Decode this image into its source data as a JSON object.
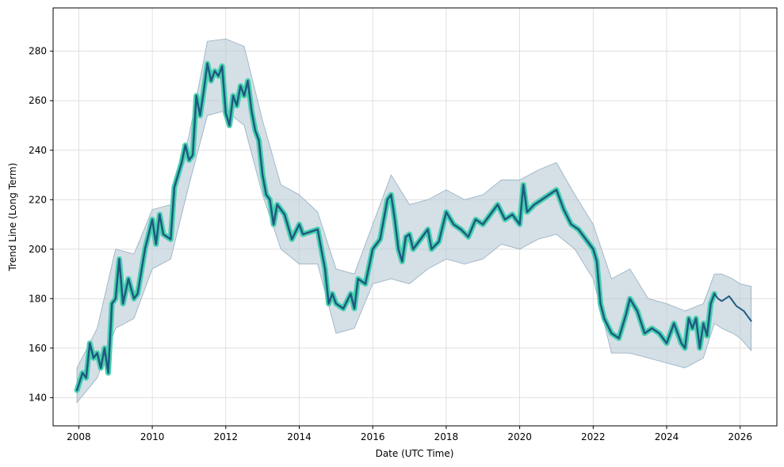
{
  "chart_data": {
    "type": "line",
    "title": "",
    "xlabel": "Date (UTC Time)",
    "ylabel": "Trend Line (Long Term)",
    "xlim": [
      2007.3,
      2027.0
    ],
    "ylim": [
      128.6,
      297.5
    ],
    "grid": true,
    "legend": "none",
    "x_ticks": [
      2008,
      2010,
      2012,
      2014,
      2016,
      2018,
      2020,
      2022,
      2024,
      2026
    ],
    "x_tick_labels": [
      "2008",
      "2010",
      "2012",
      "2014",
      "2016",
      "2018",
      "2020",
      "2022",
      "2024",
      "2026"
    ],
    "y_ticks": [
      140,
      160,
      180,
      200,
      220,
      240,
      260,
      280
    ],
    "y_tick_labels": [
      "140",
      "160",
      "180",
      "200",
      "220",
      "240",
      "260",
      "280"
    ],
    "colors": {
      "trend": "#1f5a80",
      "trend_glow": "#48d1b0",
      "band_fill": "#b7c9d6",
      "band_edge": "#94aec1",
      "grid": "#d9d9d9"
    },
    "series": [
      {
        "role": "historical",
        "x": [
          2007.95,
          2008.1,
          2008.2,
          2008.3,
          2008.4,
          2008.5,
          2008.6,
          2008.7,
          2008.8,
          2008.9,
          2009.0,
          2009.1,
          2009.2,
          2009.35,
          2009.5,
          2009.6,
          2009.8,
          2010.0,
          2010.1,
          2010.2,
          2010.3,
          2010.5,
          2010.6,
          2010.8,
          2010.9,
          2011.0,
          2011.1,
          2011.2,
          2011.3,
          2011.4,
          2011.5,
          2011.6,
          2011.7,
          2011.8,
          2011.9,
          2012.0,
          2012.1,
          2012.2,
          2012.3,
          2012.4,
          2012.5,
          2012.6,
          2012.7,
          2012.8,
          2012.9,
          2013.0,
          2013.1,
          2013.2,
          2013.3,
          2013.4,
          2013.6,
          2013.8,
          2014.0,
          2014.1,
          2014.3,
          2014.5,
          2014.6,
          2014.7,
          2014.8,
          2014.9,
          2015.0,
          2015.2,
          2015.4,
          2015.5,
          2015.6,
          2015.8,
          2016.0,
          2016.2,
          2016.4,
          2016.5,
          2016.6,
          2016.7,
          2016.8,
          2016.9,
          2017.0,
          2017.1,
          2017.3,
          2017.5,
          2017.6,
          2017.8,
          2018.0,
          2018.2,
          2018.4,
          2018.6,
          2018.8,
          2019.0,
          2019.2,
          2019.4,
          2019.6,
          2019.8,
          2020.0,
          2020.1,
          2020.2,
          2020.4,
          2020.6,
          2020.8,
          2021.0,
          2021.2,
          2021.4,
          2021.6,
          2021.8,
          2022.0,
          2022.1,
          2022.2,
          2022.3,
          2022.5,
          2022.7,
          2022.9,
          2023.0,
          2023.2,
          2023.4,
          2023.6,
          2023.8,
          2024.0,
          2024.2,
          2024.4,
          2024.5,
          2024.6,
          2024.7,
          2024.8,
          2024.9,
          2025.0,
          2025.1,
          2025.2,
          2025.3
        ],
        "y": [
          143,
          150,
          148,
          162,
          156,
          158,
          152,
          160,
          150,
          178,
          180,
          196,
          178,
          188,
          180,
          182,
          200,
          212,
          202,
          214,
          206,
          204,
          225,
          235,
          242,
          236,
          238,
          262,
          254,
          264,
          275,
          268,
          272,
          270,
          274,
          255,
          250,
          262,
          258,
          266,
          262,
          268,
          256,
          248,
          244,
          230,
          222,
          220,
          210,
          218,
          214,
          204,
          210,
          206,
          207,
          208,
          200,
          192,
          178,
          182,
          178,
          176,
          182,
          176,
          188,
          186,
          200,
          204,
          220,
          222,
          212,
          200,
          195,
          205,
          206,
          200,
          204,
          208,
          200,
          203,
          215,
          210,
          208,
          205,
          212,
          210,
          214,
          218,
          212,
          214,
          210,
          226,
          215,
          218,
          220,
          222,
          224,
          216,
          210,
          208,
          204,
          200,
          195,
          178,
          172,
          166,
          164,
          174,
          180,
          175,
          166,
          168,
          166,
          162,
          170,
          162,
          160,
          172,
          168,
          172,
          160,
          170,
          165,
          178,
          182
        ]
      },
      {
        "role": "forecast",
        "x": [
          2025.3,
          2025.4,
          2025.5,
          2025.6,
          2025.7,
          2025.8,
          2025.9,
          2026.0,
          2026.1,
          2026.2,
          2026.3
        ],
        "y": [
          182,
          180,
          179,
          180,
          181,
          179,
          177,
          176,
          175,
          173,
          171
        ]
      }
    ],
    "band": {
      "x": [
        2007.95,
        2008.5,
        2009.0,
        2009.5,
        2010.0,
        2010.5,
        2011.0,
        2011.5,
        2012.0,
        2012.5,
        2013.0,
        2013.5,
        2014.0,
        2014.5,
        2015.0,
        2015.5,
        2016.0,
        2016.5,
        2017.0,
        2017.5,
        2018.0,
        2018.5,
        2019.0,
        2019.5,
        2020.0,
        2020.5,
        2021.0,
        2021.5,
        2022.0,
        2022.5,
        2023.0,
        2023.5,
        2024.0,
        2024.5,
        2025.0,
        2025.3,
        2025.5,
        2025.8,
        2026.0,
        2026.3
      ],
      "upper": [
        152,
        168,
        200,
        198,
        216,
        218,
        246,
        284,
        285,
        282,
        252,
        226,
        222,
        215,
        192,
        190,
        210,
        230,
        218,
        220,
        224,
        220,
        222,
        228,
        228,
        232,
        235,
        222,
        210,
        188,
        192,
        180,
        178,
        175,
        178,
        190,
        190,
        188,
        186,
        185
      ],
      "lower": [
        138,
        148,
        168,
        172,
        192,
        196,
        226,
        254,
        256,
        250,
        222,
        200,
        194,
        194,
        166,
        168,
        186,
        188,
        186,
        192,
        196,
        194,
        196,
        202,
        200,
        204,
        206,
        200,
        188,
        158,
        158,
        156,
        154,
        152,
        156,
        170,
        168,
        166,
        164,
        159
      ]
    }
  }
}
